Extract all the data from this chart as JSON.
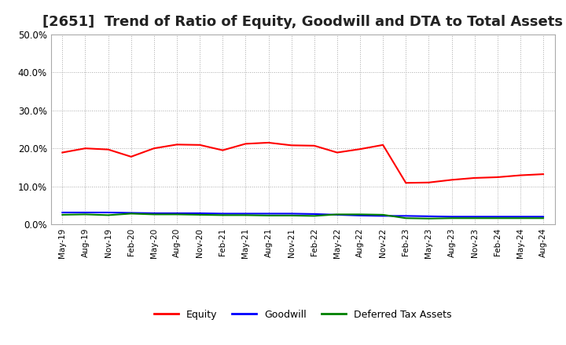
{
  "title": "[2651]  Trend of Ratio of Equity, Goodwill and DTA to Total Assets",
  "x_labels": [
    "May-19",
    "Aug-19",
    "Nov-19",
    "Feb-20",
    "May-20",
    "Aug-20",
    "Nov-20",
    "Feb-21",
    "May-21",
    "Aug-21",
    "Nov-21",
    "Feb-22",
    "May-22",
    "Aug-22",
    "Nov-22",
    "Feb-23",
    "May-23",
    "Aug-23",
    "Nov-23",
    "Feb-24",
    "May-24",
    "Aug-24"
  ],
  "equity": [
    0.189,
    0.2,
    0.197,
    0.178,
    0.2,
    0.21,
    0.209,
    0.195,
    0.212,
    0.215,
    0.208,
    0.207,
    0.189,
    0.198,
    0.209,
    0.109,
    0.11,
    0.117,
    0.122,
    0.124,
    0.129,
    0.132
  ],
  "goodwill": [
    0.031,
    0.031,
    0.031,
    0.03,
    0.029,
    0.029,
    0.029,
    0.028,
    0.028,
    0.028,
    0.028,
    0.027,
    0.025,
    0.023,
    0.022,
    0.022,
    0.021,
    0.02,
    0.02,
    0.02,
    0.02,
    0.02
  ],
  "dta": [
    0.025,
    0.026,
    0.024,
    0.028,
    0.026,
    0.026,
    0.025,
    0.024,
    0.024,
    0.023,
    0.023,
    0.022,
    0.026,
    0.026,
    0.025,
    0.016,
    0.015,
    0.016,
    0.016,
    0.016,
    0.016,
    0.016
  ],
  "equity_color": "#FF0000",
  "goodwill_color": "#0000FF",
  "dta_color": "#008000",
  "ylim": [
    0.0,
    0.5
  ],
  "yticks": [
    0.0,
    0.1,
    0.2,
    0.3,
    0.4,
    0.5
  ],
  "background_color": "#FFFFFF",
  "grid_color": "#AAAAAA",
  "title_fontsize": 13,
  "legend_labels": [
    "Equity",
    "Goodwill",
    "Deferred Tax Assets"
  ]
}
